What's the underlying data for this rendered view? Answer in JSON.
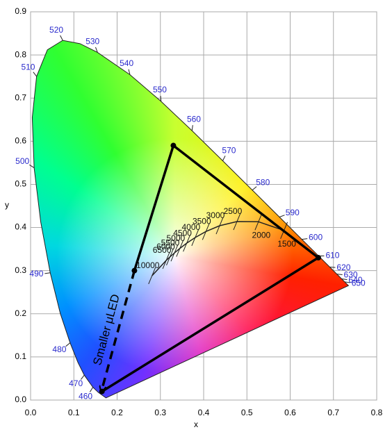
{
  "chart_data": {
    "type": "chromaticity",
    "xlabel": "x",
    "ylabel": "y",
    "xlim": [
      0,
      0.8
    ],
    "ylim": [
      0,
      0.9
    ],
    "xticks": [
      {
        "value": 0,
        "label": "0.0"
      },
      0.1,
      0.2,
      0.3,
      0.4,
      0.5,
      0.6,
      0.7,
      0.8
    ],
    "yticks": [
      {
        "value": 0,
        "label": "0.0"
      },
      0.1,
      0.2,
      0.3,
      0.4,
      0.5,
      0.6,
      0.7,
      0.8,
      0.9
    ],
    "grid": true,
    "spectral_locus": {
      "wavelengths": [
        null,
        null,
        460,
        470,
        null,
        480,
        null,
        490,
        null,
        500,
        null,
        510,
        null,
        520,
        null,
        530,
        540,
        550,
        560,
        570,
        580,
        590,
        600,
        610,
        620,
        630,
        640,
        650,
        null
      ],
      "x": [
        0.1741,
        0.1566,
        0.144,
        0.1241,
        0.1096,
        0.0913,
        0.0687,
        0.0454,
        0.0235,
        0.0082,
        0.0039,
        0.0139,
        0.0389,
        0.0743,
        0.1142,
        0.1547,
        0.2296,
        0.3016,
        0.3731,
        0.4441,
        0.5125,
        0.5752,
        0.627,
        0.6658,
        0.6915,
        0.7079,
        0.719,
        0.726,
        0.7347
      ],
      "y": [
        0.005,
        0.0177,
        0.0297,
        0.0578,
        0.0868,
        0.1327,
        0.2007,
        0.295,
        0.4127,
        0.5384,
        0.6548,
        0.7502,
        0.812,
        0.8338,
        0.8262,
        0.8059,
        0.7543,
        0.6923,
        0.6245,
        0.5547,
        0.4866,
        0.4242,
        0.3725,
        0.334,
        0.3083,
        0.292,
        0.2809,
        0.274,
        0.2653
      ]
    },
    "planckian_locus": {
      "temperatures": [
        1500,
        2000,
        2500,
        3000,
        3500,
        4000,
        4500,
        5000,
        5500,
        6000,
        6500,
        10000
      ],
      "x": [
        0.5857,
        0.5267,
        0.477,
        0.4369,
        0.4053,
        0.3805,
        0.3608,
        0.3451,
        0.3325,
        0.3221,
        0.3135,
        0.2807
      ],
      "y": [
        0.3931,
        0.4133,
        0.4137,
        0.4041,
        0.3907,
        0.3768,
        0.3636,
        0.3516,
        0.3411,
        0.3318,
        0.3237,
        0.2883
      ]
    },
    "gamut": {
      "x": [
        0.24,
        0.33,
        0.665,
        0.165
      ],
      "y": [
        0.3,
        0.59,
        0.33,
        0.02
      ]
    },
    "arrow": {
      "x": [
        0.24,
        0.165
      ],
      "y": [
        0.3,
        0.025
      ]
    },
    "annotation": "Smaller μLED"
  }
}
